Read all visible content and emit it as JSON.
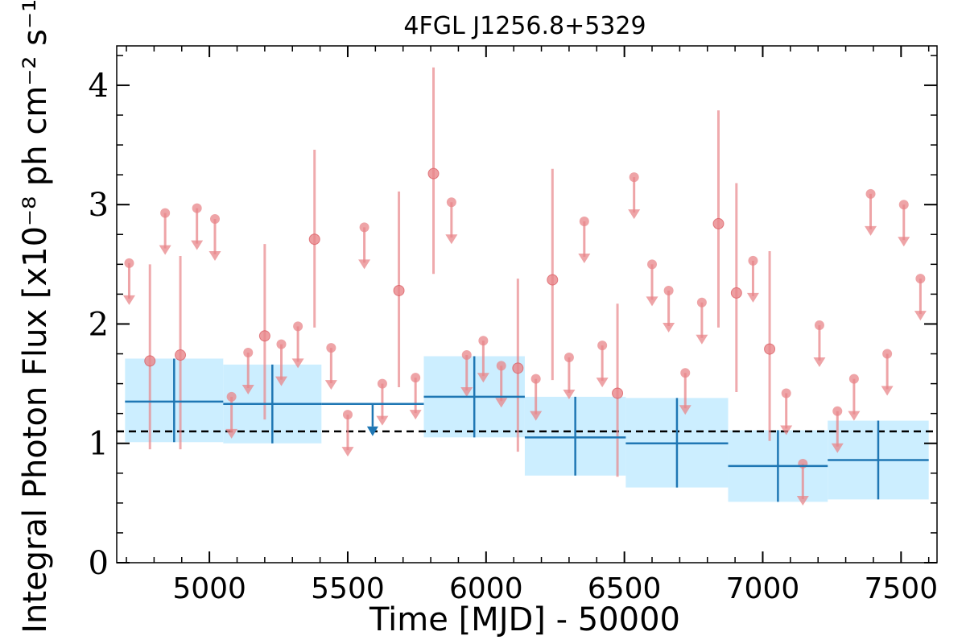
{
  "chart_data": {
    "type": "scatter",
    "title": "4FGL J1256.8+5329",
    "xlabel": "Time [MJD] - 50000",
    "ylabel": "Integral Photon Flux [x10⁻⁸ ph cm⁻² s⁻¹]",
    "xlim": [
      4665,
      7630
    ],
    "ylim": [
      0,
      4.33
    ],
    "x_ticks": [
      5000,
      5500,
      6000,
      6500,
      7000,
      7500
    ],
    "x_tick_labels": [
      "5000",
      "5500",
      "6000",
      "6500",
      "7000",
      "7500"
    ],
    "y_ticks": [
      0,
      1,
      2,
      3,
      4
    ],
    "y_tick_labels": [
      "0",
      "1",
      "2",
      "3",
      "4"
    ],
    "average_flux": 1.1,
    "colors": {
      "short_bins": "#e8868a",
      "long_bins": "#1f77b4",
      "long_bin_band": "#cceeff",
      "average_line": "#000000"
    },
    "short_bins_detections": [
      {
        "x": 4785,
        "y": 1.69,
        "lo": 0.95,
        "hi": 2.5
      },
      {
        "x": 4895,
        "y": 1.74,
        "lo": 0.95,
        "hi": 2.57
      },
      {
        "x": 5200,
        "y": 1.9,
        "lo": 1.2,
        "hi": 2.67
      },
      {
        "x": 5380,
        "y": 2.71,
        "lo": 1.97,
        "hi": 3.46
      },
      {
        "x": 5685,
        "y": 2.28,
        "lo": 1.47,
        "hi": 3.11
      },
      {
        "x": 5810,
        "y": 3.26,
        "lo": 2.42,
        "hi": 4.15
      },
      {
        "x": 6115,
        "y": 1.63,
        "lo": 0.93,
        "hi": 2.38
      },
      {
        "x": 6240,
        "y": 2.37,
        "lo": 1.53,
        "hi": 3.3
      },
      {
        "x": 6475,
        "y": 1.42,
        "lo": 0.72,
        "hi": 2.17
      },
      {
        "x": 6840,
        "y": 2.84,
        "lo": 1.97,
        "hi": 3.79
      },
      {
        "x": 6905,
        "y": 2.26,
        "lo": 1.43,
        "hi": 3.18
      },
      {
        "x": 7025,
        "y": 1.79,
        "lo": 1.02,
        "hi": 2.61
      }
    ],
    "short_bins_upper_limits": [
      {
        "x": 4710,
        "y": 2.51
      },
      {
        "x": 4840,
        "y": 2.93
      },
      {
        "x": 4955,
        "y": 2.97
      },
      {
        "x": 5020,
        "y": 2.88
      },
      {
        "x": 5080,
        "y": 1.39
      },
      {
        "x": 5140,
        "y": 1.76
      },
      {
        "x": 5260,
        "y": 1.83
      },
      {
        "x": 5320,
        "y": 1.98
      },
      {
        "x": 5440,
        "y": 1.8
      },
      {
        "x": 5500,
        "y": 1.24
      },
      {
        "x": 5560,
        "y": 2.81
      },
      {
        "x": 5625,
        "y": 1.5
      },
      {
        "x": 5745,
        "y": 1.55
      },
      {
        "x": 5875,
        "y": 3.02
      },
      {
        "x": 5930,
        "y": 1.74
      },
      {
        "x": 5990,
        "y": 1.86
      },
      {
        "x": 6055,
        "y": 1.65
      },
      {
        "x": 6180,
        "y": 1.54
      },
      {
        "x": 6300,
        "y": 1.72
      },
      {
        "x": 6355,
        "y": 2.86
      },
      {
        "x": 6420,
        "y": 1.82
      },
      {
        "x": 6535,
        "y": 3.23
      },
      {
        "x": 6600,
        "y": 2.5
      },
      {
        "x": 6660,
        "y": 2.28
      },
      {
        "x": 6720,
        "y": 1.59
      },
      {
        "x": 6780,
        "y": 2.18
      },
      {
        "x": 6965,
        "y": 2.53
      },
      {
        "x": 7085,
        "y": 1.42
      },
      {
        "x": 7145,
        "y": 0.83
      },
      {
        "x": 7205,
        "y": 1.99
      },
      {
        "x": 7270,
        "y": 1.27
      },
      {
        "x": 7330,
        "y": 1.54
      },
      {
        "x": 7390,
        "y": 3.09
      },
      {
        "x": 7450,
        "y": 1.75
      },
      {
        "x": 7510,
        "y": 3.0
      },
      {
        "x": 7570,
        "y": 2.38
      }
    ],
    "long_bins_detections": [
      {
        "x0": 4695,
        "x1": 5050,
        "y": 1.35,
        "lo": 1.01,
        "hi": 1.71
      },
      {
        "x0": 5050,
        "x1": 5405,
        "y": 1.33,
        "lo": 1.0,
        "hi": 1.66
      },
      {
        "x0": 5775,
        "x1": 6140,
        "y": 1.39,
        "lo": 1.05,
        "hi": 1.73
      },
      {
        "x0": 6140,
        "x1": 6505,
        "y": 1.05,
        "lo": 0.73,
        "hi": 1.39
      },
      {
        "x0": 6505,
        "x1": 6875,
        "y": 1.0,
        "lo": 0.63,
        "hi": 1.38
      },
      {
        "x0": 6875,
        "x1": 7235,
        "y": 0.81,
        "lo": 0.51,
        "hi": 1.11
      },
      {
        "x0": 7235,
        "x1": 7600,
        "y": 0.86,
        "lo": 0.53,
        "hi": 1.19
      }
    ],
    "long_bins_upper_limits": [
      {
        "x0": 5405,
        "x1": 5775,
        "y": 1.33
      }
    ]
  }
}
